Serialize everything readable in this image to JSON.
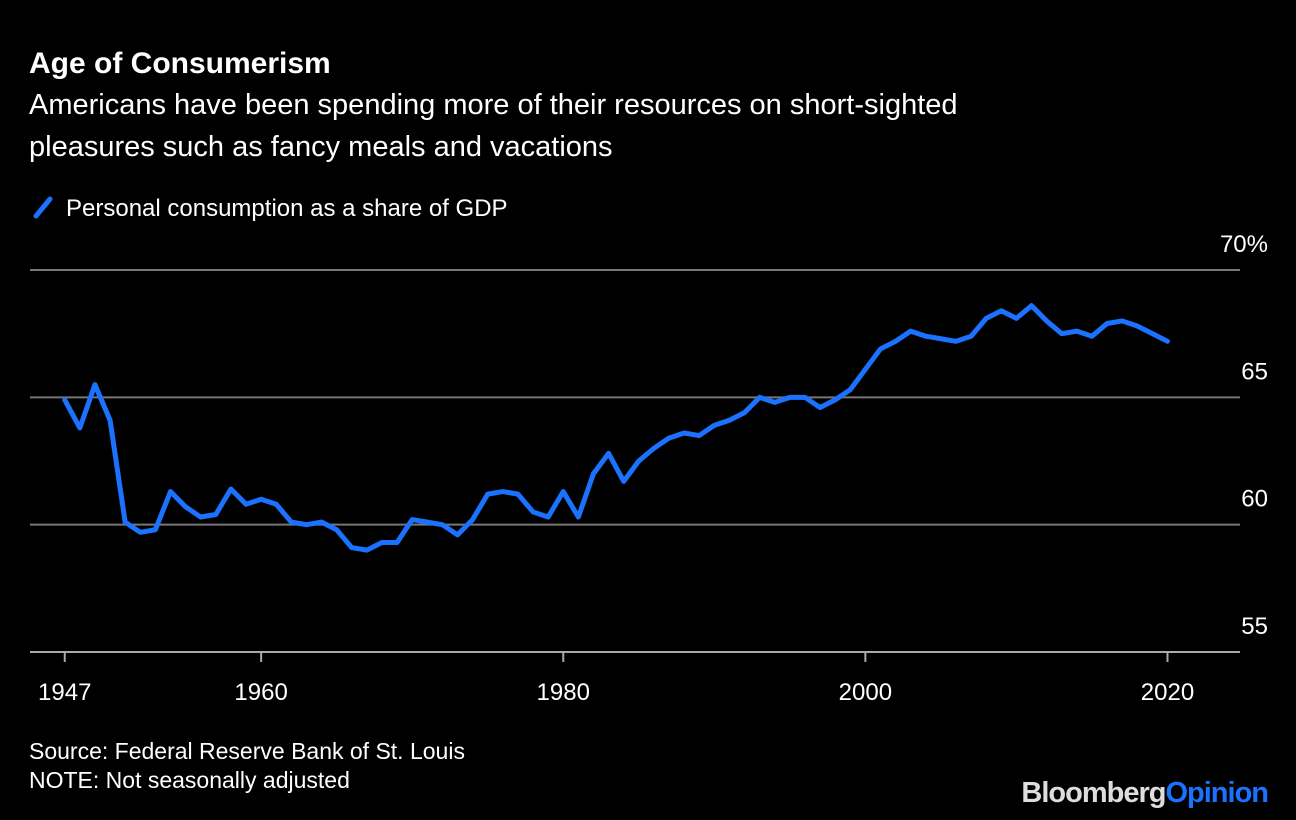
{
  "chart_data": {
    "type": "line",
    "title": "Age of Consumerism",
    "subtitle": [
      "Americans have been spending more of their resources on short-sighted",
      "pleasures such as fancy meals and vacations"
    ],
    "x": [
      1947,
      1948,
      1949,
      1950,
      1951,
      1952,
      1953,
      1954,
      1955,
      1956,
      1957,
      1958,
      1959,
      1960,
      1961,
      1962,
      1963,
      1964,
      1965,
      1966,
      1967,
      1968,
      1969,
      1970,
      1971,
      1972,
      1973,
      1974,
      1975,
      1976,
      1977,
      1978,
      1979,
      1980,
      1981,
      1982,
      1983,
      1984,
      1985,
      1986,
      1987,
      1988,
      1989,
      1990,
      1991,
      1992,
      1993,
      1994,
      1995,
      1996,
      1997,
      1998,
      1999,
      2000,
      2001,
      2002,
      2003,
      2004,
      2005,
      2006,
      2007,
      2008,
      2009,
      2010,
      2011,
      2012,
      2013,
      2014,
      2015,
      2016,
      2017,
      2018,
      2019,
      2020
    ],
    "series": [
      {
        "name": "Personal consumption as a share of GDP",
        "color": "#1a72ff",
        "values": [
          64.9,
          63.8,
          65.5,
          64.1,
          60.1,
          59.7,
          59.8,
          61.3,
          60.7,
          60.3,
          60.4,
          61.4,
          60.8,
          61.0,
          60.8,
          60.1,
          60.0,
          60.1,
          59.8,
          59.1,
          59.0,
          59.3,
          59.3,
          60.2,
          60.1,
          60.0,
          59.6,
          60.2,
          61.2,
          61.3,
          61.2,
          60.5,
          60.3,
          61.3,
          60.3,
          62.0,
          62.8,
          61.7,
          62.5,
          63.0,
          63.4,
          63.6,
          63.5,
          63.9,
          64.1,
          64.4,
          65.0,
          64.8,
          65.0,
          65.0,
          64.6,
          64.9,
          65.3,
          66.1,
          66.9,
          67.2,
          67.6,
          67.4,
          67.3,
          67.2,
          67.4,
          68.1,
          68.4,
          68.1,
          68.6,
          68.0,
          67.5,
          67.6,
          67.4,
          67.9,
          68.0,
          67.8,
          67.5,
          67.2
        ]
      }
    ],
    "xlim": [
      1944.7,
      2024.8
    ],
    "xticks": [
      1947,
      1960,
      1980,
      2000,
      2020
    ],
    "ylim": [
      55,
      70
    ],
    "yticks": [
      55,
      60,
      65,
      {
        "value": 70,
        "label": "70%"
      }
    ],
    "grid": true,
    "source": "Source: Federal Reserve Bank of St. Louis",
    "note": "NOTE: Not seasonally adjusted"
  },
  "logo": {
    "brand": "Bloomberg",
    "product": "Opinion"
  }
}
